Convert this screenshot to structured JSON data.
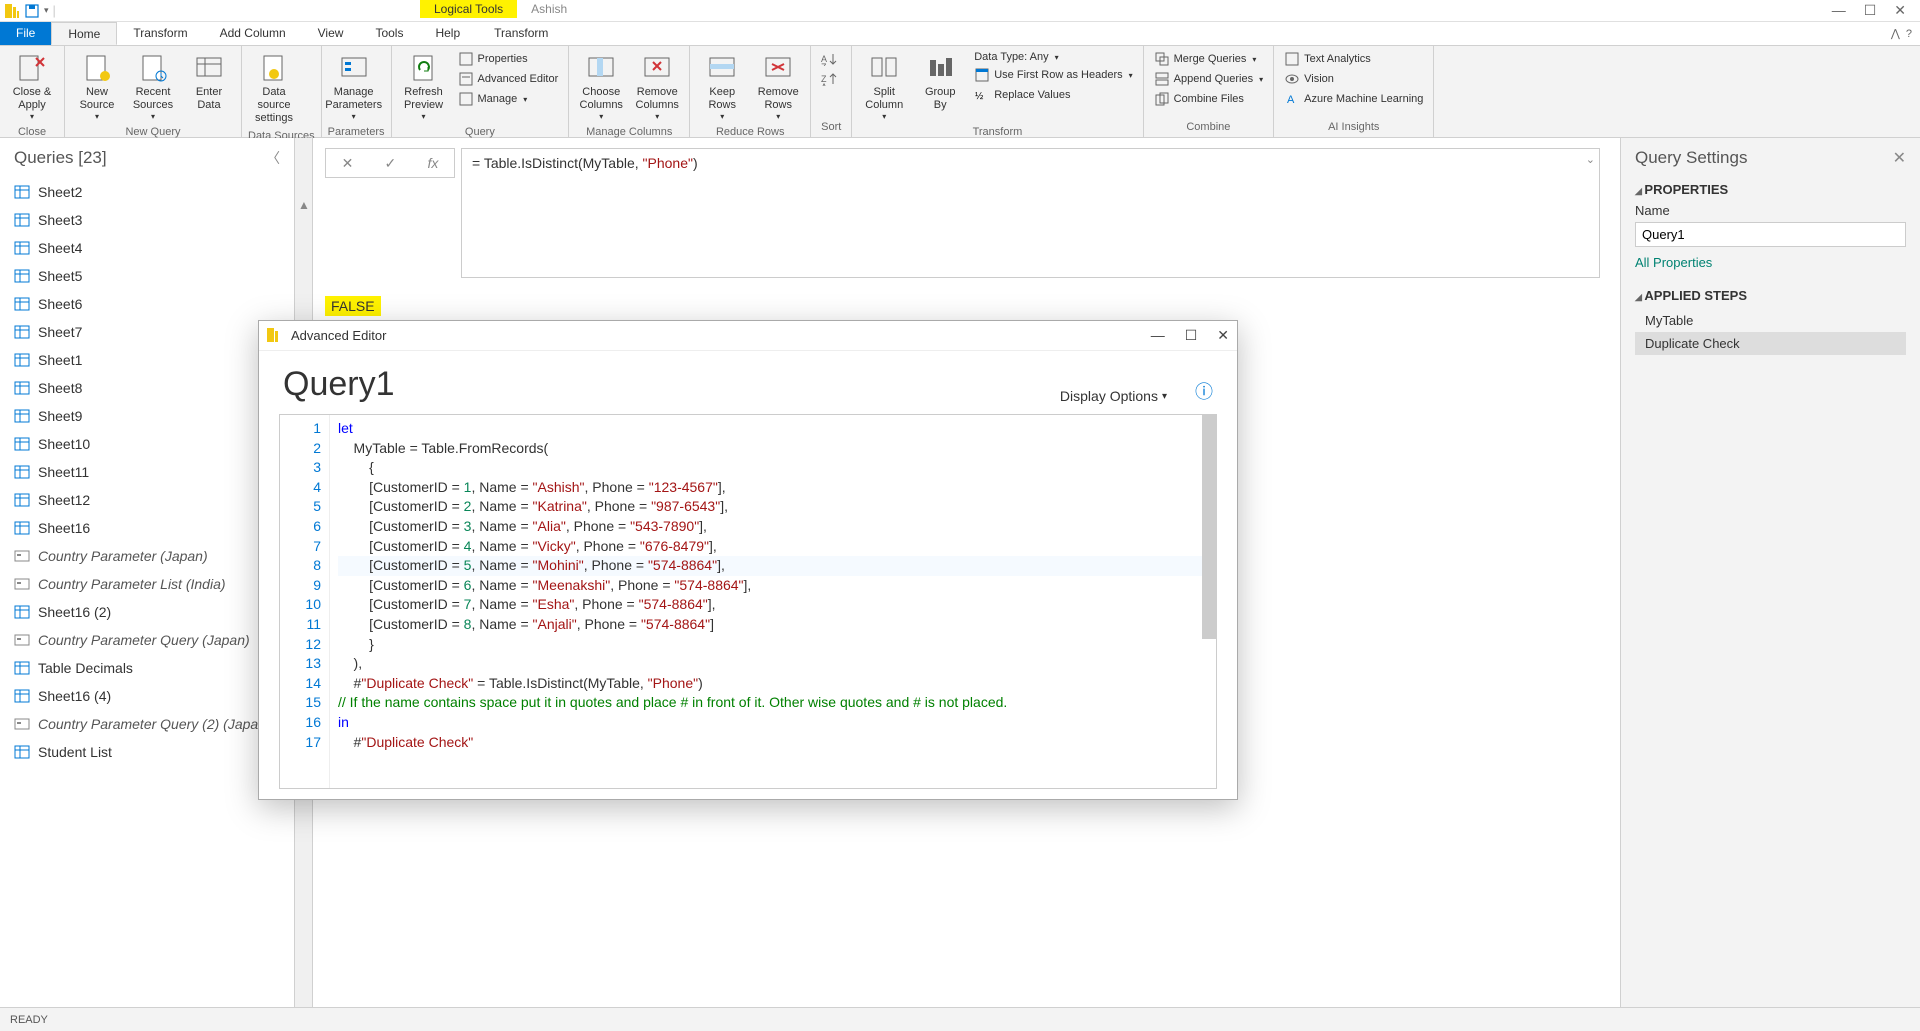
{
  "titlebar": {
    "context_tab_1": "Logical Tools",
    "context_tab_2": "Ashish"
  },
  "tabs": {
    "file": "File",
    "home": "Home",
    "transform": "Transform",
    "add_column": "Add Column",
    "view": "View",
    "tools": "Tools",
    "help": "Help",
    "ctx_transform": "Transform"
  },
  "ribbon": {
    "close_apply": "Close &\nApply",
    "close_group": "Close",
    "new_source": "New\nSource",
    "recent_sources": "Recent\nSources",
    "enter_data": "Enter\nData",
    "new_query_group": "New Query",
    "data_source_settings": "Data source\nsettings",
    "data_sources_group": "Data Sources",
    "manage_parameters": "Manage\nParameters",
    "parameters_group": "Parameters",
    "refresh_preview": "Refresh\nPreview",
    "properties": "Properties",
    "advanced_editor": "Advanced Editor",
    "manage": "Manage",
    "query_group": "Query",
    "choose_columns": "Choose\nColumns",
    "remove_columns": "Remove\nColumns",
    "manage_columns_group": "Manage Columns",
    "keep_rows": "Keep\nRows",
    "remove_rows": "Remove\nRows",
    "reduce_rows_group": "Reduce Rows",
    "sort_group": "Sort",
    "split_column": "Split\nColumn",
    "group_by": "Group\nBy",
    "data_type": "Data Type: Any",
    "use_first_row": "Use First Row as Headers",
    "replace_values": "Replace Values",
    "transform_group": "Transform",
    "merge_queries": "Merge Queries",
    "append_queries": "Append Queries",
    "combine_files": "Combine Files",
    "combine_group": "Combine",
    "text_analytics": "Text Analytics",
    "vision": "Vision",
    "azure_ml": "Azure Machine Learning",
    "ai_insights_group": "AI Insights"
  },
  "queries": {
    "header": "Queries [23]",
    "items": [
      {
        "label": "Sheet2",
        "type": "table"
      },
      {
        "label": "Sheet3",
        "type": "table"
      },
      {
        "label": "Sheet4",
        "type": "table"
      },
      {
        "label": "Sheet5",
        "type": "table"
      },
      {
        "label": "Sheet6",
        "type": "table"
      },
      {
        "label": "Sheet7",
        "type": "table"
      },
      {
        "label": "Sheet1",
        "type": "table"
      },
      {
        "label": "Sheet8",
        "type": "table"
      },
      {
        "label": "Sheet9",
        "type": "table"
      },
      {
        "label": "Sheet10",
        "type": "table"
      },
      {
        "label": "Sheet11",
        "type": "table"
      },
      {
        "label": "Sheet12",
        "type": "table"
      },
      {
        "label": "Sheet16",
        "type": "table"
      },
      {
        "label": "Country Parameter (Japan)",
        "type": "param"
      },
      {
        "label": "Country Parameter List (India)",
        "type": "param"
      },
      {
        "label": "Sheet16 (2)",
        "type": "table"
      },
      {
        "label": "Country Parameter Query (Japan)",
        "type": "param"
      },
      {
        "label": "Table Decimals",
        "type": "table"
      },
      {
        "label": "Sheet16 (4)",
        "type": "table"
      },
      {
        "label": "Country Parameter Query (2) (Japa",
        "type": "param"
      },
      {
        "label": "Student List",
        "type": "table"
      }
    ]
  },
  "formula": {
    "prefix": "= Table.IsDistinct(MyTable, ",
    "string": "\"Phone\"",
    "suffix": ")"
  },
  "result_value": "FALSE",
  "settings": {
    "header": "Query Settings",
    "properties_title": "PROPERTIES",
    "name_label": "Name",
    "name_value": "Query1",
    "all_properties": "All Properties",
    "applied_steps_title": "APPLIED STEPS",
    "steps": [
      "MyTable",
      "Duplicate Check"
    ]
  },
  "adv_editor": {
    "title": "Advanced Editor",
    "heading": "Query1",
    "display_options": "Display Options",
    "code_lines": [
      {
        "n": 1,
        "segments": [
          {
            "t": "let",
            "c": "kw"
          }
        ]
      },
      {
        "n": 2,
        "segments": [
          {
            "t": "    MyTable = Table.FromRecords("
          }
        ]
      },
      {
        "n": 3,
        "segments": [
          {
            "t": "        {"
          }
        ]
      },
      {
        "n": 4,
        "segments": [
          {
            "t": "        [CustomerID = "
          },
          {
            "t": "1",
            "c": "num"
          },
          {
            "t": ", Name = "
          },
          {
            "t": "\"Ashish\"",
            "c": "str"
          },
          {
            "t": ", Phone = "
          },
          {
            "t": "\"123-4567\"",
            "c": "str"
          },
          {
            "t": "],"
          }
        ]
      },
      {
        "n": 5,
        "segments": [
          {
            "t": "        [CustomerID = "
          },
          {
            "t": "2",
            "c": "num"
          },
          {
            "t": ", Name = "
          },
          {
            "t": "\"Katrina\"",
            "c": "str"
          },
          {
            "t": ", Phone = "
          },
          {
            "t": "\"987-6543\"",
            "c": "str"
          },
          {
            "t": "],"
          }
        ]
      },
      {
        "n": 6,
        "segments": [
          {
            "t": "        [CustomerID = "
          },
          {
            "t": "3",
            "c": "num"
          },
          {
            "t": ", Name = "
          },
          {
            "t": "\"Alia\"",
            "c": "str"
          },
          {
            "t": ", Phone = "
          },
          {
            "t": "\"543-7890\"",
            "c": "str"
          },
          {
            "t": "],"
          }
        ]
      },
      {
        "n": 7,
        "segments": [
          {
            "t": "        [CustomerID = "
          },
          {
            "t": "4",
            "c": "num"
          },
          {
            "t": ", Name = "
          },
          {
            "t": "\"Vicky\"",
            "c": "str"
          },
          {
            "t": ", Phone = "
          },
          {
            "t": "\"676-8479\"",
            "c": "str"
          },
          {
            "t": "],"
          }
        ]
      },
      {
        "n": 8,
        "current": true,
        "segments": [
          {
            "t": "        [CustomerID = "
          },
          {
            "t": "5",
            "c": "num"
          },
          {
            "t": ", Name = "
          },
          {
            "t": "\"Mohini\"",
            "c": "str"
          },
          {
            "t": ", Phone = "
          },
          {
            "t": "\"574-8864\"",
            "c": "str"
          },
          {
            "t": "],"
          }
        ]
      },
      {
        "n": 9,
        "segments": [
          {
            "t": "        [CustomerID = "
          },
          {
            "t": "6",
            "c": "num"
          },
          {
            "t": ", Name = "
          },
          {
            "t": "\"Meenakshi\"",
            "c": "str"
          },
          {
            "t": ", Phone = "
          },
          {
            "t": "\"574-8864\"",
            "c": "str"
          },
          {
            "t": "],"
          }
        ]
      },
      {
        "n": 10,
        "segments": [
          {
            "t": "        [CustomerID = "
          },
          {
            "t": "7",
            "c": "num"
          },
          {
            "t": ", Name = "
          },
          {
            "t": "\"Esha\"",
            "c": "str"
          },
          {
            "t": ", Phone = "
          },
          {
            "t": "\"574-8864\"",
            "c": "str"
          },
          {
            "t": "],"
          }
        ]
      },
      {
        "n": 11,
        "segments": [
          {
            "t": "        [CustomerID = "
          },
          {
            "t": "8",
            "c": "num"
          },
          {
            "t": ", Name = "
          },
          {
            "t": "\"Anjali\"",
            "c": "str"
          },
          {
            "t": ", Phone = "
          },
          {
            "t": "\"574-8864\"",
            "c": "str"
          },
          {
            "t": "]"
          }
        ]
      },
      {
        "n": 12,
        "segments": [
          {
            "t": "        }"
          }
        ]
      },
      {
        "n": 13,
        "segments": [
          {
            "t": "    ),"
          }
        ]
      },
      {
        "n": 14,
        "segments": [
          {
            "t": "    #"
          },
          {
            "t": "\"Duplicate Check\"",
            "c": "str"
          },
          {
            "t": " = Table.IsDistinct(MyTable, "
          },
          {
            "t": "\"Phone\"",
            "c": "str"
          },
          {
            "t": ")"
          }
        ]
      },
      {
        "n": 15,
        "segments": [
          {
            "t": "// If the name contains space put it in quotes and place # in front of it. Other wise quotes and # is not placed.",
            "c": "comment"
          }
        ]
      },
      {
        "n": 16,
        "segments": [
          {
            "t": "in",
            "c": "kw"
          }
        ]
      },
      {
        "n": 17,
        "segments": [
          {
            "t": "    #"
          },
          {
            "t": "\"Duplicate Check\"",
            "c": "str"
          }
        ]
      }
    ]
  },
  "statusbar": "READY",
  "colors": {
    "accent": "#0078d4",
    "highlight": "#fff200",
    "teal": "#008272"
  }
}
